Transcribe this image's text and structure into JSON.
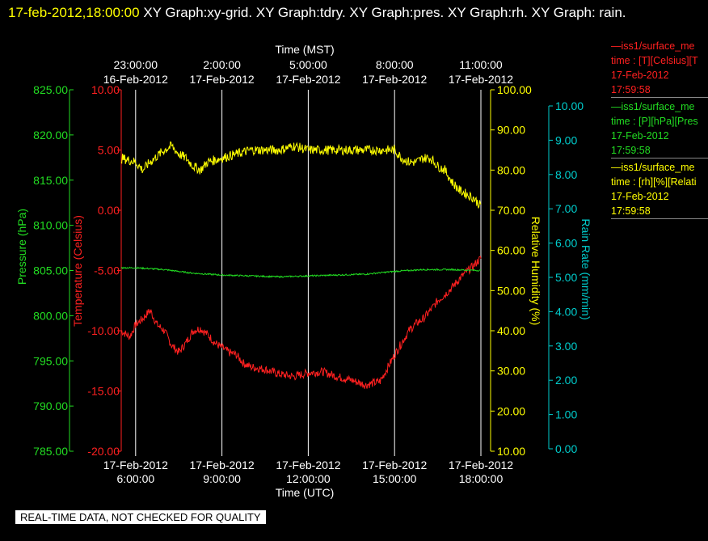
{
  "title": {
    "timestamp": "17-feb-2012,18:00:00",
    "text": " XY Graph:xy-grid.  XY Graph:tdry.  XY Graph:pres.  XY Graph:rh.  XY Graph: rain."
  },
  "legend": [
    {
      "line1": "—iss1/surface_me",
      "line2": "time : [T][Celsius][T",
      "line3": "17-Feb-2012",
      "line4": "17:59:58",
      "color": "#ff2020"
    },
    {
      "line1": "—iss1/surface_me",
      "line2": "time : [P][hPa][Pres",
      "line3": "17-Feb-2012",
      "line4": "17:59:58",
      "color": "#22dd22"
    },
    {
      "line1": "—iss1/surface_me",
      "line2": "time : [rh][%][Relati",
      "line3": "17-Feb-2012",
      "line4": "17:59:58",
      "color": "#ffff00"
    }
  ],
  "footer": "REAL-TIME DATA, NOT CHECKED FOR QUALITY",
  "colors": {
    "temperature": "#ff2020",
    "pressure": "#22dd22",
    "humidity": "#ffff00",
    "rain": "#00cccc",
    "grid": "#ffffff",
    "title_timestamp": "#ffff00"
  },
  "chart_data": {
    "type": "line",
    "x_range_utc_hours": [
      5.5,
      18.0
    ],
    "top_axis": {
      "label": "Time (MST)",
      "ticks": [
        {
          "utc": 6,
          "time": "23:00:00",
          "date": "16-Feb-2012"
        },
        {
          "utc": 9,
          "time": "2:00:00",
          "date": "17-Feb-2012"
        },
        {
          "utc": 12,
          "time": "5:00:00",
          "date": "17-Feb-2012"
        },
        {
          "utc": 15,
          "time": "8:00:00",
          "date": "17-Feb-2012"
        },
        {
          "utc": 18,
          "time": "11:00:00",
          "date": "17-Feb-2012"
        }
      ]
    },
    "bottom_axis": {
      "label": "Time (UTC)",
      "ticks": [
        {
          "utc": 6,
          "date": "17-Feb-2012",
          "time": "6:00:00"
        },
        {
          "utc": 9,
          "date": "17-Feb-2012",
          "time": "9:00:00"
        },
        {
          "utc": 12,
          "date": "17-Feb-2012",
          "time": "12:00:00"
        },
        {
          "utc": 15,
          "date": "17-Feb-2012",
          "time": "15:00:00"
        },
        {
          "utc": 18,
          "date": "17-Feb-2012",
          "time": "18:00:00"
        }
      ]
    },
    "y_axes": {
      "pressure": {
        "label": "Pressure (hPa)",
        "range": [
          785,
          825
        ],
        "ticks": [
          "825.00",
          "820.00",
          "815.00",
          "810.00",
          "805.00",
          "800.00",
          "795.00",
          "790.00",
          "785.00"
        ]
      },
      "temperature": {
        "label": "Temperature (Celsius)",
        "range": [
          -20,
          10
        ],
        "ticks": [
          "10.00",
          "5.00",
          "0.00",
          "-5.00",
          "-10.00",
          "-15.00",
          "-20.00"
        ]
      },
      "humidity": {
        "label": "Relative Humidity (%)",
        "range": [
          10,
          100
        ],
        "ticks": [
          "100.00",
          "90.00",
          "80.00",
          "70.00",
          "60.00",
          "50.00",
          "40.00",
          "30.00",
          "20.00",
          "10.00"
        ]
      },
      "rain": {
        "label": "Rain Rate (mm/min)",
        "range": [
          0,
          10.5
        ],
        "ticks": [
          "10.00",
          "9.00",
          "8.00",
          "7.00",
          "6.00",
          "5.00",
          "4.00",
          "3.00",
          "2.00",
          "1.00",
          "0.00"
        ]
      }
    },
    "series": [
      {
        "name": "temperature",
        "axis": "temperature",
        "color": "#ff2020",
        "x": [
          5.5,
          5.8,
          6.0,
          6.25,
          6.5,
          6.75,
          7.0,
          7.25,
          7.5,
          7.75,
          8.0,
          8.25,
          8.5,
          8.75,
          9.0,
          9.25,
          9.5,
          9.75,
          10.0,
          10.5,
          11.0,
          11.5,
          12.0,
          12.5,
          13.0,
          13.5,
          14.0,
          14.5,
          15.0,
          15.25,
          15.5,
          15.75,
          16.0,
          16.25,
          16.5,
          16.75,
          17.0,
          17.25,
          17.5,
          17.75,
          17.9,
          18.0
        ],
        "y": [
          -10.0,
          -10.5,
          -9.5,
          -9.0,
          -8.3,
          -9.5,
          -10.0,
          -11.2,
          -11.8,
          -11.0,
          -10.0,
          -9.8,
          -10.3,
          -11.0,
          -11.4,
          -11.8,
          -12.0,
          -12.7,
          -13.0,
          -13.2,
          -13.6,
          -13.8,
          -13.5,
          -13.4,
          -13.8,
          -14.1,
          -14.5,
          -14.2,
          -12.0,
          -11.0,
          -10.0,
          -9.4,
          -9.0,
          -8.3,
          -7.5,
          -7.0,
          -6.4,
          -5.7,
          -5.1,
          -4.6,
          -4.2,
          -4.0
        ]
      },
      {
        "name": "pressure",
        "axis": "pressure",
        "color": "#22dd22",
        "x": [
          5.5,
          6.0,
          6.5,
          7.0,
          7.5,
          8.0,
          8.5,
          9.0,
          10.0,
          11.0,
          12.0,
          13.0,
          14.0,
          15.0,
          15.5,
          16.0,
          17.0,
          18.0
        ],
        "y": [
          805.3,
          805.3,
          805.2,
          805.1,
          804.9,
          804.7,
          804.6,
          804.5,
          804.4,
          804.3,
          804.4,
          804.5,
          804.6,
          804.9,
          805.0,
          805.1,
          805.1,
          805.0
        ]
      },
      {
        "name": "humidity",
        "axis": "humidity",
        "color": "#ffff00",
        "x": [
          5.5,
          6.0,
          6.25,
          6.5,
          7.0,
          7.25,
          7.5,
          7.75,
          8.0,
          8.25,
          8.5,
          9.0,
          9.5,
          10.0,
          10.5,
          11.0,
          11.5,
          12.0,
          12.5,
          13.0,
          13.5,
          14.0,
          14.5,
          15.0,
          15.25,
          15.5,
          15.75,
          16.0,
          16.25,
          16.5,
          16.75,
          17.0,
          17.25,
          17.5,
          17.75,
          18.0
        ],
        "y": [
          83,
          82,
          80,
          82,
          85,
          86,
          84,
          83,
          81,
          80,
          82,
          83,
          84,
          85,
          85,
          85,
          86,
          85,
          85,
          85,
          85,
          85,
          85,
          85,
          83,
          82,
          82,
          83,
          83,
          81,
          80,
          77,
          75,
          74,
          73,
          71
        ]
      }
    ]
  }
}
